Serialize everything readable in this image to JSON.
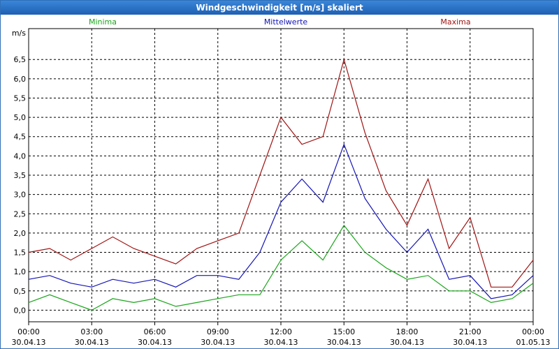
{
  "window": {
    "title": "Windgeschwindigkeit [m/s] skaliert"
  },
  "colors": {
    "min": "#1aa51a",
    "mean": "#1414b4",
    "max": "#a01414",
    "grid": "#000000"
  },
  "chart_data": {
    "type": "line",
    "title": "Windgeschwindigkeit [m/s] skaliert",
    "ylabel": "m/s",
    "ylim": [
      -0.3,
      7.3
    ],
    "yticks": [
      "0,0",
      "0,5",
      "1,0",
      "1,5",
      "2,0",
      "2,5",
      "3,0",
      "3,5",
      "4,0",
      "4,5",
      "5,0",
      "5,5",
      "6,0",
      "6,5"
    ],
    "xticks": [
      {
        "time": "00:00",
        "date": "30.04.13"
      },
      {
        "time": "03:00",
        "date": "30.04.13"
      },
      {
        "time": "06:00",
        "date": "30.04.13"
      },
      {
        "time": "09:00",
        "date": "30.04.13"
      },
      {
        "time": "12:00",
        "date": "30.04.13"
      },
      {
        "time": "15:00",
        "date": "30.04.13"
      },
      {
        "time": "18:00",
        "date": "30.04.13"
      },
      {
        "time": "21:00",
        "date": "30.04.13"
      },
      {
        "time": "00:00",
        "date": "01.05.13"
      }
    ],
    "x_hours": [
      0,
      1,
      2,
      3,
      4,
      5,
      6,
      7,
      8,
      9,
      10,
      11,
      12,
      13,
      14,
      15,
      16,
      17,
      18,
      19,
      20,
      21,
      22,
      23,
      24
    ],
    "grid": true,
    "legend_position": "top",
    "series": [
      {
        "name": "Minima",
        "values": [
          0.2,
          0.4,
          0.2,
          0.0,
          0.3,
          0.2,
          0.3,
          0.1,
          0.2,
          0.3,
          0.4,
          0.4,
          1.3,
          1.8,
          1.3,
          2.2,
          1.5,
          1.1,
          0.8,
          0.9,
          0.5,
          0.5,
          0.2,
          0.3,
          0.7
        ]
      },
      {
        "name": "Mittelwerte",
        "values": [
          0.8,
          0.9,
          0.7,
          0.6,
          0.8,
          0.7,
          0.8,
          0.6,
          0.9,
          0.9,
          0.8,
          1.5,
          2.8,
          3.4,
          2.8,
          4.3,
          2.9,
          2.1,
          1.5,
          2.1,
          0.8,
          0.9,
          0.3,
          0.4,
          0.9
        ]
      },
      {
        "name": "Maxima",
        "values": [
          1.5,
          1.6,
          1.3,
          1.6,
          1.9,
          1.6,
          1.4,
          1.2,
          1.6,
          1.8,
          2.0,
          3.5,
          5.0,
          4.3,
          4.5,
          6.5,
          4.6,
          3.1,
          2.2,
          3.4,
          1.6,
          2.4,
          0.6,
          0.6,
          1.3
        ]
      }
    ]
  }
}
